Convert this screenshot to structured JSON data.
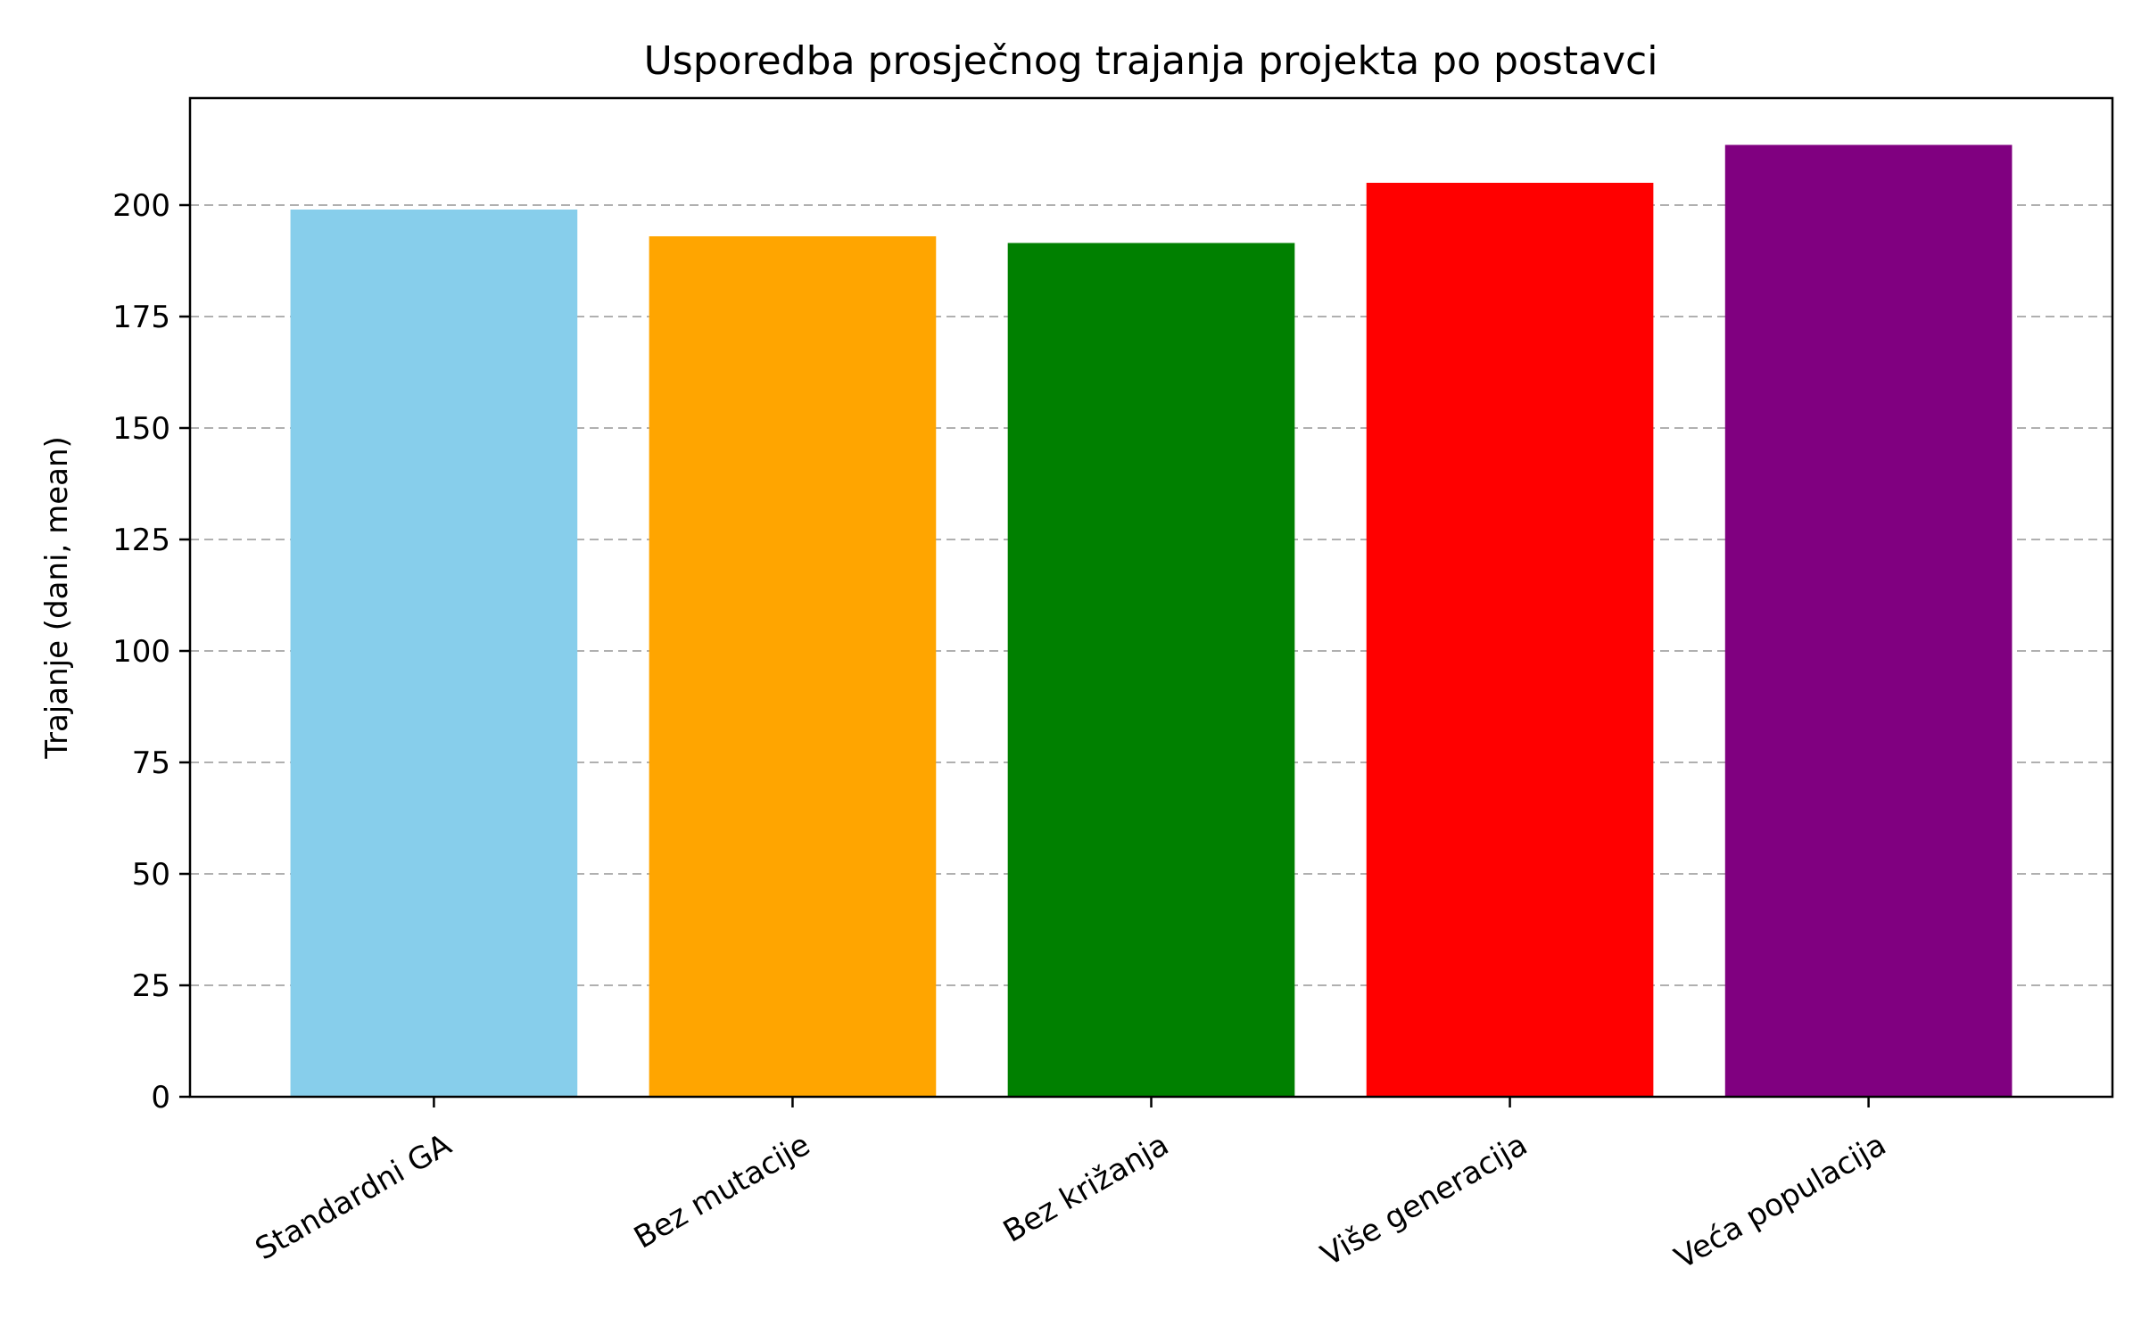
{
  "chart_data": {
    "type": "bar",
    "title": "Usporedba prosječnog trajanja projekta po postavci",
    "xlabel": "",
    "ylabel": "Trajanje (dani, mean)",
    "categories": [
      "Standardni GA",
      "Bez mutacije",
      "Bez križanja",
      "Više generacija",
      "Veća populacija"
    ],
    "values": [
      199,
      193,
      191.5,
      205,
      213.5
    ],
    "colors": [
      "#87ceeb",
      "#ffa500",
      "#008000",
      "#ff0000",
      "#800080"
    ],
    "ylim": [
      0,
      224
    ],
    "yticks": [
      0,
      25,
      50,
      75,
      100,
      125,
      150,
      175,
      200
    ],
    "grid": "y, dashed",
    "legend": "none"
  }
}
